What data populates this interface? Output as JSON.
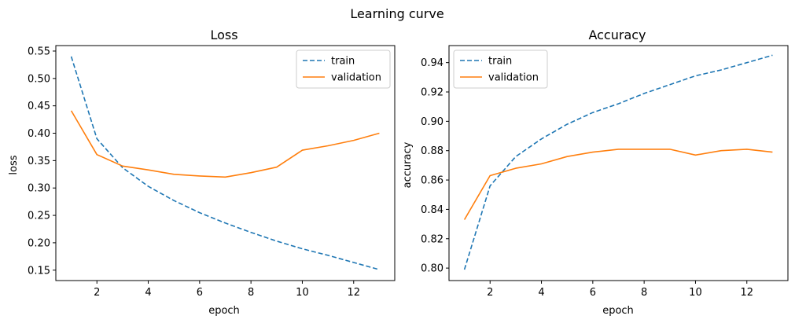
{
  "suptitle": "Learning curve",
  "colors": {
    "train": "#1f77b4",
    "validation": "#ff7f0e",
    "axes": "#000000",
    "legend_border": "#cccccc"
  },
  "chart_data": [
    {
      "type": "line",
      "title": "Loss",
      "xlabel": "epoch",
      "ylabel": "loss",
      "xlim": [
        0.4,
        13.6
      ],
      "ylim": [
        0.131,
        0.56
      ],
      "xticks": [
        2,
        4,
        6,
        8,
        10,
        12
      ],
      "yticks": [
        0.15,
        0.2,
        0.25,
        0.3,
        0.35,
        0.4,
        0.45,
        0.5,
        0.55
      ],
      "ytick_labels": [
        "0.15",
        "0.20",
        "0.25",
        "0.30",
        "0.35",
        "0.40",
        "0.45",
        "0.50",
        "0.55"
      ],
      "legend": "top-right",
      "grid": false,
      "x": [
        1,
        2,
        3,
        4,
        5,
        6,
        7,
        8,
        9,
        10,
        11,
        12,
        13
      ],
      "series": [
        {
          "name": "train",
          "style": "dashed",
          "values": [
            0.54,
            0.39,
            0.337,
            0.303,
            0.277,
            0.255,
            0.236,
            0.219,
            0.203,
            0.189,
            0.177,
            0.164,
            0.151
          ]
        },
        {
          "name": "validation",
          "style": "solid",
          "values": [
            0.441,
            0.361,
            0.34,
            0.333,
            0.325,
            0.322,
            0.32,
            0.328,
            0.338,
            0.369,
            0.377,
            0.387,
            0.4
          ]
        }
      ]
    },
    {
      "type": "line",
      "title": "Accuracy",
      "xlabel": "epoch",
      "ylabel": "accuracy",
      "xlim": [
        0.4,
        13.6
      ],
      "ylim": [
        0.7915,
        0.9516
      ],
      "xticks": [
        2,
        4,
        6,
        8,
        10,
        12
      ],
      "yticks": [
        0.8,
        0.82,
        0.84,
        0.86,
        0.88,
        0.9,
        0.92,
        0.94
      ],
      "ytick_labels": [
        "0.80",
        "0.82",
        "0.84",
        "0.86",
        "0.88",
        "0.90",
        "0.92",
        "0.94"
      ],
      "legend": "top-left",
      "grid": false,
      "x": [
        1,
        2,
        3,
        4,
        5,
        6,
        7,
        8,
        9,
        10,
        11,
        12,
        13
      ],
      "series": [
        {
          "name": "train",
          "style": "dashed",
          "values": [
            0.799,
            0.856,
            0.876,
            0.888,
            0.898,
            0.906,
            0.912,
            0.919,
            0.925,
            0.931,
            0.935,
            0.94,
            0.945
          ]
        },
        {
          "name": "validation",
          "style": "solid",
          "values": [
            0.833,
            0.863,
            0.868,
            0.871,
            0.876,
            0.879,
            0.881,
            0.881,
            0.881,
            0.877,
            0.88,
            0.881,
            0.879
          ]
        }
      ]
    }
  ]
}
